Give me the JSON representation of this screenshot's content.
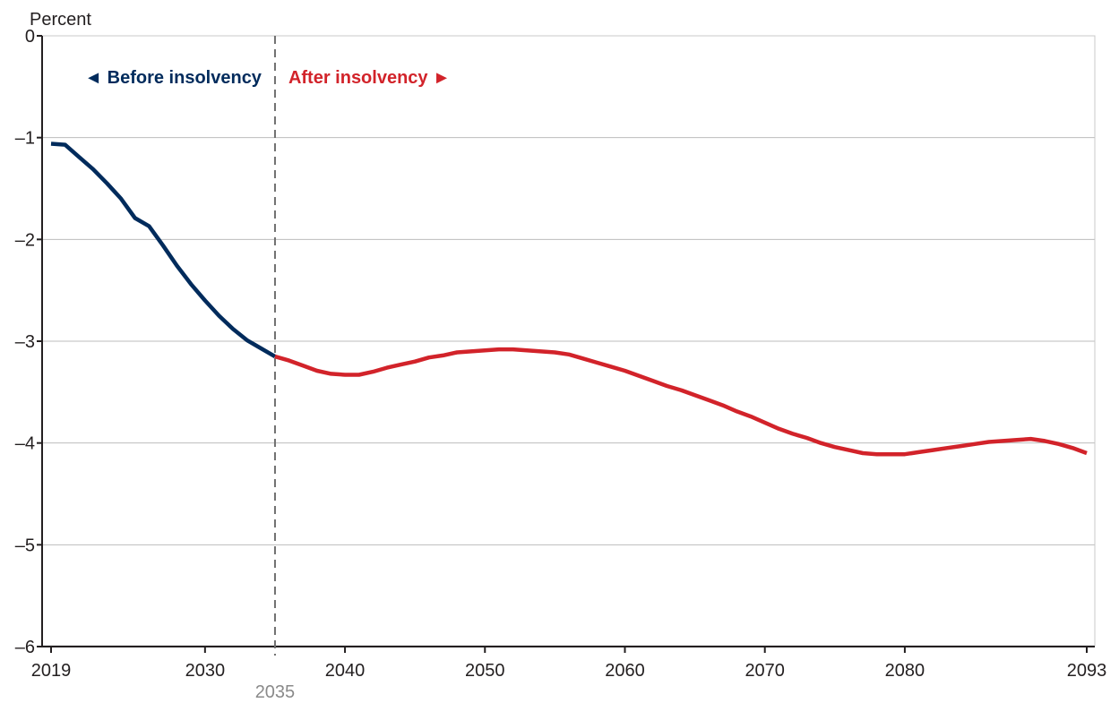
{
  "chart_data": {
    "type": "line",
    "ylabel": "Percent",
    "xlabel": "",
    "xlim": [
      2019,
      2093
    ],
    "ylim": [
      -6,
      0
    ],
    "x_ticks": [
      2019,
      2030,
      2040,
      2050,
      2060,
      2070,
      2080,
      2093
    ],
    "y_ticks": [
      0,
      -1,
      -2,
      -3,
      -4,
      -5,
      -6
    ],
    "y_tick_labels": [
      "0",
      "–1",
      "–2",
      "–3",
      "–4",
      "–5",
      "–6"
    ],
    "grid": true,
    "marker": {
      "x": 2035,
      "label": "2035"
    },
    "annotations": {
      "before": "◄ Before insolvency",
      "after": "After insolvency ►"
    },
    "colors": {
      "before": "#002b5c",
      "after": "#d2232a",
      "marker": "#6f6f6f"
    },
    "series": [
      {
        "segment": "before",
        "x": [
          2019,
          2020,
          2021,
          2022,
          2023,
          2024,
          2025,
          2026,
          2027,
          2028,
          2029,
          2030,
          2031,
          2032,
          2033,
          2034,
          2035
        ],
        "y": [
          -1.06,
          -1.07,
          -1.19,
          -1.31,
          -1.45,
          -1.6,
          -1.79,
          -1.87,
          -2.06,
          -2.26,
          -2.44,
          -2.6,
          -2.75,
          -2.88,
          -2.99,
          -3.07,
          -3.15
        ]
      },
      {
        "segment": "after",
        "x": [
          2035,
          2036,
          2037,
          2038,
          2039,
          2040,
          2041,
          2042,
          2043,
          2044,
          2045,
          2046,
          2047,
          2048,
          2049,
          2050,
          2051,
          2052,
          2053,
          2054,
          2055,
          2056,
          2057,
          2058,
          2059,
          2060,
          2061,
          2062,
          2063,
          2064,
          2065,
          2066,
          2067,
          2068,
          2069,
          2070,
          2071,
          2072,
          2073,
          2074,
          2075,
          2076,
          2077,
          2078,
          2079,
          2080,
          2081,
          2082,
          2083,
          2084,
          2085,
          2086,
          2087,
          2088,
          2089,
          2090,
          2091,
          2092,
          2093
        ],
        "y": [
          -3.15,
          -3.19,
          -3.24,
          -3.29,
          -3.32,
          -3.33,
          -3.33,
          -3.3,
          -3.26,
          -3.23,
          -3.2,
          -3.16,
          -3.14,
          -3.11,
          -3.1,
          -3.09,
          -3.08,
          -3.08,
          -3.09,
          -3.1,
          -3.11,
          -3.13,
          -3.17,
          -3.21,
          -3.25,
          -3.29,
          -3.34,
          -3.39,
          -3.44,
          -3.48,
          -3.53,
          -3.58,
          -3.63,
          -3.69,
          -3.74,
          -3.8,
          -3.86,
          -3.91,
          -3.95,
          -4.0,
          -4.04,
          -4.07,
          -4.1,
          -4.11,
          -4.11,
          -4.11,
          -4.09,
          -4.07,
          -4.05,
          -4.03,
          -4.01,
          -3.99,
          -3.98,
          -3.97,
          -3.96,
          -3.98,
          -4.01,
          -4.05,
          -4.1
        ]
      }
    ]
  }
}
